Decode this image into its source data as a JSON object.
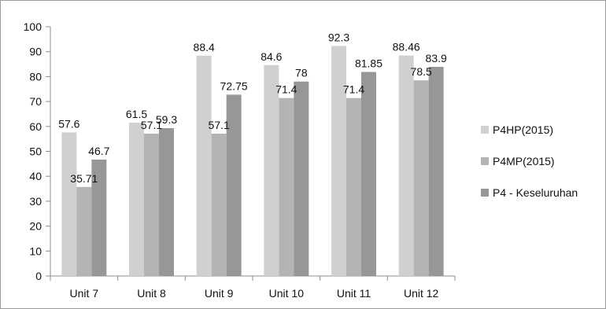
{
  "chart_data": {
    "type": "bar",
    "title": "",
    "xlabel": "",
    "ylabel": "",
    "ylim": [
      0,
      100
    ],
    "yticks": [
      0,
      10,
      20,
      30,
      40,
      50,
      60,
      70,
      80,
      90,
      100
    ],
    "grid": false,
    "legend_position": "right",
    "categories": [
      "Unit 7",
      "Unit 8",
      "Unit 9",
      "Unit 10",
      "Unit 11",
      "Unit 12"
    ],
    "series": [
      {
        "name": "P4HP(2015)",
        "color": "#d0d0d0",
        "values": [
          57.6,
          61.5,
          88.4,
          84.6,
          92.3,
          88.46
        ],
        "labels": [
          "57.6",
          "61.5",
          "88.4",
          "84.6",
          "92.3",
          "88.46"
        ]
      },
      {
        "name": "P4MP(2015)",
        "color": "#b4b4b4",
        "values": [
          35.71,
          57.1,
          57.1,
          71.4,
          71.4,
          78.5
        ],
        "labels": [
          "35.71",
          "57.1",
          "57.1",
          "71.4",
          "71.4",
          "78.5"
        ]
      },
      {
        "name": "P4 - Keseluruhan",
        "color": "#979797",
        "values": [
          46.7,
          59.3,
          72.75,
          78,
          81.85,
          83.9
        ],
        "labels": [
          "46.7",
          "59.3",
          "72.75",
          "78",
          "81.85",
          "83.9"
        ]
      }
    ]
  }
}
